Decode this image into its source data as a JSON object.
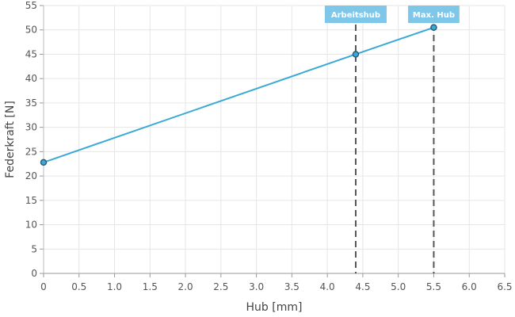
{
  "chart_data": {
    "type": "line",
    "title": "",
    "xlabel": "Hub [mm]",
    "ylabel": "Federkraft [N]",
    "xlim": [
      0,
      6.5
    ],
    "ylim": [
      0,
      55
    ],
    "x_ticks": [
      "0",
      "0.5",
      "1.0",
      "1.5",
      "2.0",
      "2.5",
      "3.0",
      "3.5",
      "4.0",
      "4.5",
      "5.0",
      "5.5",
      "6.0",
      "6.5"
    ],
    "y_ticks": [
      "0",
      "5",
      "10",
      "15",
      "20",
      "25",
      "30",
      "35",
      "40",
      "45",
      "50",
      "55"
    ],
    "grid": true,
    "legend": "none",
    "series": [
      {
        "color": "#3ba9d6",
        "points": [
          {
            "x": 0,
            "y": 22.8
          },
          {
            "x": 4.4,
            "y": 45
          },
          {
            "x": 5.5,
            "y": 50.5
          }
        ]
      }
    ],
    "annotations": [
      {
        "label": "Arbeitshub",
        "x": 4.4,
        "color": "#7fc7e8"
      },
      {
        "label": "Max. Hub",
        "x": 5.5,
        "color": "#7fc7e8"
      }
    ]
  }
}
